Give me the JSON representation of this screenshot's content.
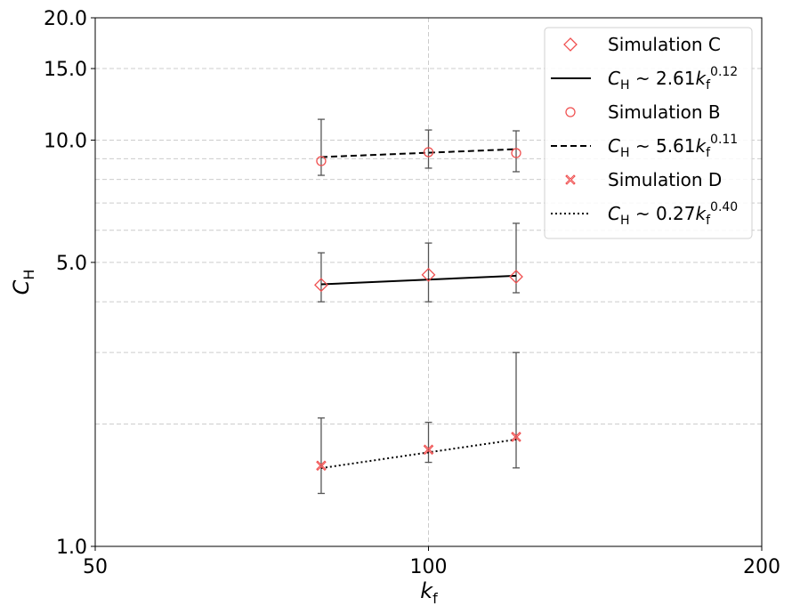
{
  "chart_data": {
    "type": "scatter",
    "xscale": "log",
    "yscale": "log",
    "xlim": [
      50,
      200
    ],
    "ylim": [
      1.0,
      20.0
    ],
    "xlabel": "k_f",
    "ylabel": "C_H",
    "xticks": [
      50,
      100,
      200
    ],
    "xtick_labels": [
      "50",
      "100",
      "200"
    ],
    "yticks": [
      1.0,
      5.0,
      10.0,
      15.0,
      20.0
    ],
    "ytick_labels": [
      "1.0",
      "5.0",
      "10.0",
      "15.0",
      "20.0"
    ],
    "y_minor_grid": [
      2,
      3,
      4,
      6,
      7,
      8,
      9
    ],
    "x_grid": [
      100
    ],
    "grid": true,
    "legend_position": "top-right",
    "marker_color": "#f05050",
    "errorbar_color": "#555555",
    "series": [
      {
        "name": "Simulation C",
        "marker": "diamond",
        "x": [
          80,
          100,
          120
        ],
        "y": [
          4.4,
          4.66,
          4.61
        ],
        "yerr_low": [
          4.0,
          4.0,
          4.21
        ],
        "yerr_high": [
          5.28,
          5.58,
          6.24
        ],
        "fit": {
          "coef": 2.61,
          "exp": 0.12,
          "style": "solid",
          "label_coef": "2.61",
          "label_exp": "0.12"
        }
      },
      {
        "name": "Simulation B",
        "marker": "circle",
        "x": [
          80,
          100,
          120
        ],
        "y": [
          8.88,
          9.34,
          9.29
        ],
        "yerr_low": [
          8.19,
          8.53,
          8.36
        ],
        "yerr_high": [
          11.25,
          10.59,
          10.54
        ],
        "fit": {
          "coef": 5.61,
          "exp": 0.11,
          "style": "dashed",
          "label_coef": "5.61",
          "label_exp": "0.11"
        }
      },
      {
        "name": "Simulation D",
        "marker": "x",
        "x": [
          80,
          100,
          120
        ],
        "y": [
          1.58,
          1.73,
          1.86
        ],
        "yerr_low": [
          1.35,
          1.61,
          1.56
        ],
        "yerr_high": [
          2.07,
          2.02,
          3.0
        ],
        "fit": {
          "coef": 0.27,
          "exp": 0.4,
          "style": "dotted",
          "label_coef": "0.27",
          "label_exp": "0.40"
        }
      }
    ]
  }
}
